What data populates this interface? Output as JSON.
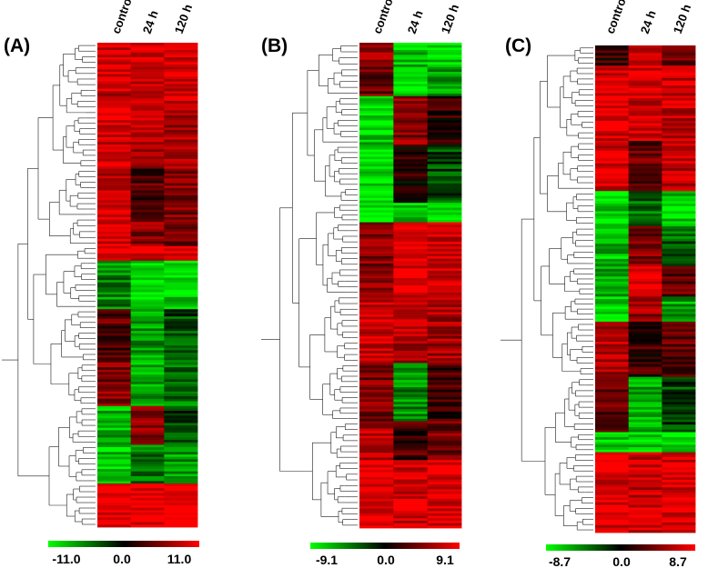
{
  "chart_data": [
    {
      "type": "heatmap",
      "panel": "(A)",
      "columns": [
        "control",
        "24 h",
        "120 h"
      ],
      "color_scale": {
        "min": -11.0,
        "mid": 0.0,
        "max": 11.0,
        "min_label": "-11.0",
        "mid_label": "0.0",
        "max_label": "11.0"
      },
      "blocks": [
        {
          "rows": 30,
          "values": [
            8.6,
            8.9,
            9.1
          ]
        },
        {
          "rows": 22,
          "values": [
            9.3,
            7.4,
            6.6
          ]
        },
        {
          "rows": 20,
          "values": [
            8.1,
            3.4,
            5.3
          ]
        },
        {
          "rows": 12,
          "values": [
            8.8,
            5.9,
            4.3
          ]
        },
        {
          "rows": 6,
          "values": [
            9.8,
            9.5,
            10.2
          ]
        },
        {
          "rows": 20,
          "values": [
            -5.8,
            -9.6,
            -9.4
          ]
        },
        {
          "rows": 22,
          "values": [
            3.6,
            -6.4,
            -3.2
          ]
        },
        {
          "rows": 18,
          "values": [
            5.4,
            -7.2,
            -5.1
          ]
        },
        {
          "rows": 16,
          "values": [
            -7.5,
            5.6,
            -2.4
          ]
        },
        {
          "rows": 16,
          "values": [
            -8.8,
            -4.9,
            -6.6
          ]
        },
        {
          "rows": 18,
          "values": [
            10.5,
            10.5,
            10.5
          ]
        }
      ]
    },
    {
      "type": "heatmap",
      "panel": "(B)",
      "columns": [
        "control",
        "24 h",
        "120 h"
      ],
      "color_scale": {
        "min": -9.1,
        "mid": 0.0,
        "max": 9.1,
        "min_label": "-9.1",
        "mid_label": "0.0",
        "max_label": "9.1"
      },
      "blocks": [
        {
          "rows": 10,
          "values": [
            6.2,
            -6.5,
            -7.5
          ]
        },
        {
          "rows": 12,
          "values": [
            3.8,
            -7.9,
            -6.1
          ]
        },
        {
          "rows": 20,
          "values": [
            -7.2,
            4.7,
            1.8
          ]
        },
        {
          "rows": 24,
          "values": [
            -8.3,
            1.2,
            -2.6
          ]
        },
        {
          "rows": 8,
          "values": [
            -8.8,
            -7.3,
            -8.3
          ]
        },
        {
          "rows": 30,
          "values": [
            4.7,
            8.1,
            7.7
          ]
        },
        {
          "rows": 28,
          "values": [
            7.3,
            6.2,
            5.8
          ]
        },
        {
          "rows": 24,
          "values": [
            4.4,
            -4.8,
            2.2
          ]
        },
        {
          "rows": 16,
          "values": [
            6.5,
            2.4,
            4.2
          ]
        },
        {
          "rows": 28,
          "values": [
            8.3,
            7.4,
            7.9
          ]
        }
      ]
    },
    {
      "type": "heatmap",
      "panel": "(C)",
      "columns": [
        "control",
        "24 h",
        "120 h"
      ],
      "color_scale": {
        "min": -8.7,
        "mid": 0.0,
        "max": 8.7,
        "min_label": "-8.7",
        "mid_label": "0.0",
        "max_label": "8.7"
      },
      "blocks": [
        {
          "rows": 8,
          "values": [
            1.7,
            7.7,
            3.5
          ]
        },
        {
          "rows": 30,
          "values": [
            7.8,
            7.1,
            6.6
          ]
        },
        {
          "rows": 20,
          "values": [
            7.4,
            3.6,
            6.1
          ]
        },
        {
          "rows": 14,
          "values": [
            -7.3,
            -3.6,
            -6.9
          ]
        },
        {
          "rows": 16,
          "values": [
            -6.4,
            4.3,
            -3.2
          ]
        },
        {
          "rows": 12,
          "values": [
            -5.5,
            7.6,
            3.4
          ]
        },
        {
          "rows": 10,
          "values": [
            -7.3,
            5.2,
            -5.4
          ]
        },
        {
          "rows": 22,
          "values": [
            5.8,
            1.8,
            3.1
          ]
        },
        {
          "rows": 22,
          "values": [
            3.5,
            -5.8,
            -2.2
          ]
        },
        {
          "rows": 8,
          "values": [
            -6.5,
            -7.3,
            -7.6
          ]
        },
        {
          "rows": 32,
          "values": [
            7.6,
            6.9,
            7.6
          ]
        }
      ]
    }
  ]
}
